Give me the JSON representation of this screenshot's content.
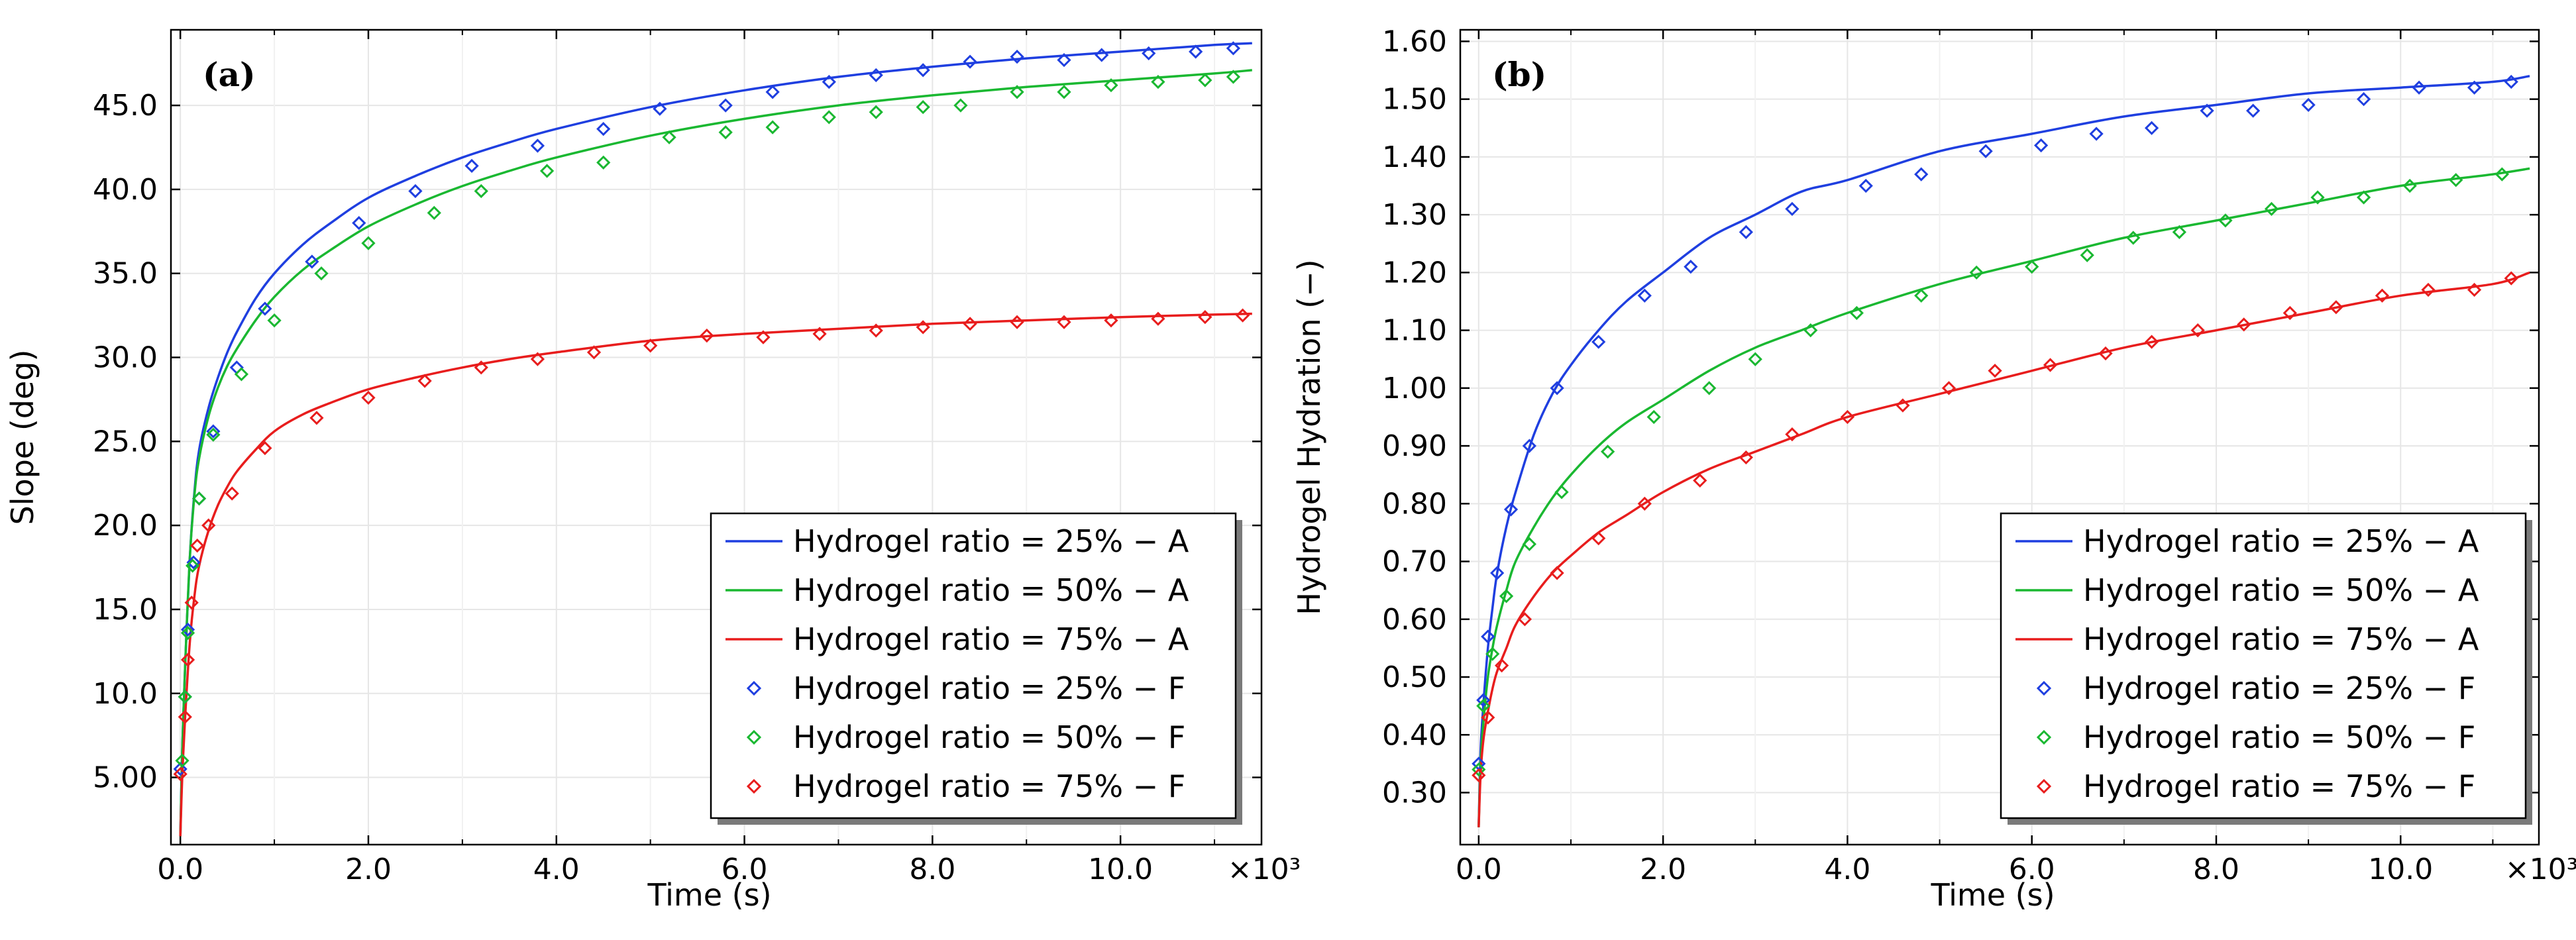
{
  "chart_data": [
    {
      "type": "line",
      "panel_label": "(a)",
      "xlabel": "Time (s)",
      "ylabel": "Slope (deg)",
      "x_multiplier": "×10³",
      "xlim": [
        -0.1,
        11.5
      ],
      "ylim": [
        1.0,
        49.5
      ],
      "x_ticks": [
        0.0,
        2.0,
        4.0,
        6.0,
        8.0,
        10.0
      ],
      "x_tick_labels": [
        "0.0",
        "2.0",
        "4.0",
        "6.0",
        "8.0",
        "10.0"
      ],
      "y_ticks": [
        5,
        10,
        15,
        20,
        25,
        30,
        35,
        40,
        45
      ],
      "y_tick_labels": [
        "5.00",
        "10.0",
        "15.0",
        "20.0",
        "25.0",
        "30.0",
        "35.0",
        "40.0",
        "45.0"
      ],
      "grid": true,
      "legend_position": "bottom-right",
      "series": [
        {
          "name": "Hydrogel ratio = 25% − A",
          "kind": "line",
          "color": "#1f3fe0",
          "x": [
            0,
            0.02,
            0.05,
            0.1,
            0.15,
            0.2,
            0.3,
            0.4,
            0.5,
            0.6,
            0.8,
            1.0,
            1.3,
            1.6,
            2.0,
            2.5,
            3.0,
            3.5,
            4.0,
            5.0,
            6.0,
            7.0,
            8.0,
            9.0,
            10.0,
            11.0,
            11.4
          ],
          "y": [
            1.5,
            6.5,
            11.5,
            18.0,
            22.0,
            24.5,
            27.0,
            28.8,
            30.3,
            31.5,
            33.5,
            35.0,
            36.7,
            38.0,
            39.5,
            40.8,
            41.9,
            42.8,
            43.6,
            44.9,
            45.9,
            46.7,
            47.3,
            47.8,
            48.2,
            48.6,
            48.7
          ]
        },
        {
          "name": "Hydrogel ratio = 50% − A",
          "kind": "line",
          "color": "#1ab831",
          "x": [
            0,
            0.02,
            0.05,
            0.1,
            0.15,
            0.2,
            0.3,
            0.4,
            0.5,
            0.6,
            0.8,
            1.0,
            1.3,
            1.6,
            2.0,
            2.5,
            3.0,
            3.5,
            4.0,
            5.0,
            6.0,
            7.0,
            8.0,
            9.0,
            10.0,
            11.0,
            11.4
          ],
          "y": [
            1.5,
            6.5,
            11.5,
            18.0,
            21.8,
            24.0,
            26.5,
            28.2,
            29.5,
            30.5,
            32.2,
            33.6,
            35.2,
            36.4,
            37.8,
            39.1,
            40.2,
            41.1,
            41.9,
            43.2,
            44.2,
            45.0,
            45.6,
            46.1,
            46.5,
            46.9,
            47.1
          ]
        },
        {
          "name": "Hydrogel ratio = 75% − A",
          "kind": "line",
          "color": "#e81d1d",
          "x": [
            0,
            0.02,
            0.05,
            0.1,
            0.15,
            0.2,
            0.3,
            0.4,
            0.5,
            0.6,
            0.8,
            1.0,
            1.3,
            1.6,
            2.0,
            2.5,
            3.0,
            3.5,
            4.0,
            5.0,
            6.0,
            7.0,
            8.0,
            9.0,
            10.0,
            11.0,
            11.4
          ],
          "y": [
            1.5,
            5.0,
            8.5,
            13.0,
            15.8,
            17.6,
            19.7,
            21.2,
            22.3,
            23.2,
            24.5,
            25.6,
            26.6,
            27.3,
            28.1,
            28.8,
            29.4,
            29.9,
            30.3,
            31.0,
            31.4,
            31.7,
            32.0,
            32.2,
            32.4,
            32.55,
            32.6
          ]
        },
        {
          "name": "Hydrogel ratio = 25% − F",
          "kind": "markers",
          "color": "#1f3fe0",
          "x": [
            0.0,
            0.05,
            0.08,
            0.14,
            0.2,
            0.35,
            0.6,
            0.9,
            1.4,
            1.9,
            2.5,
            3.1,
            3.8,
            4.5,
            5.1,
            5.8,
            6.3,
            6.9,
            7.4,
            7.9,
            8.4,
            8.9,
            9.4,
            9.8,
            10.3,
            10.8,
            11.2
          ],
          "y": [
            5.5,
            9.8,
            13.8,
            17.8,
            21.6,
            25.6,
            29.4,
            32.9,
            35.7,
            38.0,
            39.9,
            41.4,
            42.6,
            43.6,
            44.8,
            45.0,
            45.8,
            46.4,
            46.8,
            47.1,
            47.6,
            47.9,
            47.7,
            48.0,
            48.1,
            48.2,
            48.4
          ]
        },
        {
          "name": "Hydrogel ratio = 50% − F",
          "kind": "markers",
          "color": "#1ab831",
          "x": [
            0.02,
            0.05,
            0.08,
            0.13,
            0.2,
            0.35,
            0.65,
            1.0,
            1.5,
            2.0,
            2.7,
            3.2,
            3.9,
            4.5,
            5.2,
            5.8,
            6.3,
            6.9,
            7.4,
            7.9,
            8.3,
            8.9,
            9.4,
            9.9,
            10.4,
            10.9,
            11.2
          ],
          "y": [
            6.0,
            9.8,
            13.6,
            17.6,
            21.6,
            25.4,
            29.0,
            32.2,
            35.0,
            36.8,
            38.6,
            39.9,
            41.1,
            41.6,
            43.1,
            43.4,
            43.7,
            44.3,
            44.6,
            44.9,
            45.0,
            45.8,
            45.8,
            46.2,
            46.4,
            46.5,
            46.7
          ]
        },
        {
          "name": "Hydrogel ratio = 75% − F",
          "kind": "markers",
          "color": "#e81d1d",
          "x": [
            0.0,
            0.05,
            0.08,
            0.12,
            0.18,
            0.3,
            0.55,
            0.9,
            1.45,
            2.0,
            2.6,
            3.2,
            3.8,
            4.4,
            5.0,
            5.6,
            6.2,
            6.8,
            7.4,
            7.9,
            8.4,
            8.9,
            9.4,
            9.9,
            10.4,
            10.9,
            11.3
          ],
          "y": [
            5.2,
            8.6,
            12.0,
            15.4,
            18.8,
            20.0,
            21.9,
            24.6,
            26.4,
            27.6,
            28.6,
            29.4,
            29.9,
            30.3,
            30.7,
            31.3,
            31.2,
            31.4,
            31.6,
            31.8,
            32.0,
            32.1,
            32.1,
            32.2,
            32.3,
            32.4,
            32.5
          ]
        }
      ]
    },
    {
      "type": "line",
      "panel_label": "(b)",
      "xlabel": "Time (s)",
      "ylabel": "Hydrogel Hydration (−)",
      "x_multiplier": "×10³",
      "xlim": [
        -0.2,
        11.5
      ],
      "ylim": [
        0.21,
        1.62
      ],
      "x_ticks": [
        0.0,
        2.0,
        4.0,
        6.0,
        8.0,
        10.0
      ],
      "x_tick_labels": [
        "0.0",
        "2.0",
        "4.0",
        "6.0",
        "8.0",
        "10.0"
      ],
      "y_ticks": [
        0.3,
        0.4,
        0.5,
        0.6,
        0.7,
        0.8,
        0.9,
        1.0,
        1.1,
        1.2,
        1.3,
        1.4,
        1.5,
        1.6
      ],
      "y_tick_labels": [
        "0.30",
        "0.40",
        "0.50",
        "0.60",
        "0.70",
        "0.80",
        "0.90",
        "1.00",
        "1.10",
        "1.20",
        "1.30",
        "1.40",
        "1.50",
        "1.60"
      ],
      "grid": true,
      "legend_position": "bottom-right",
      "series": [
        {
          "name": "Hydrogel ratio = 25% − A",
          "kind": "line",
          "color": "#1f3fe0",
          "x": [
            0,
            0.02,
            0.05,
            0.1,
            0.15,
            0.2,
            0.3,
            0.4,
            0.6,
            0.8,
            1.0,
            1.3,
            1.6,
            2.0,
            2.5,
            3.0,
            3.5,
            4.0,
            5.0,
            6.0,
            7.0,
            8.0,
            9.0,
            10.0,
            11.0,
            11.4
          ],
          "y": [
            0.24,
            0.37,
            0.45,
            0.55,
            0.62,
            0.68,
            0.76,
            0.82,
            0.92,
            0.99,
            1.04,
            1.1,
            1.15,
            1.2,
            1.26,
            1.3,
            1.34,
            1.36,
            1.41,
            1.44,
            1.47,
            1.49,
            1.51,
            1.52,
            1.53,
            1.54
          ]
        },
        {
          "name": "Hydrogel ratio = 50% − A",
          "kind": "line",
          "color": "#1ab831",
          "x": [
            0,
            0.02,
            0.05,
            0.1,
            0.15,
            0.2,
            0.3,
            0.4,
            0.6,
            0.8,
            1.0,
            1.3,
            1.6,
            2.0,
            2.5,
            3.0,
            3.5,
            4.0,
            5.0,
            6.0,
            7.0,
            8.0,
            9.0,
            10.0,
            11.0,
            11.4
          ],
          "y": [
            0.24,
            0.35,
            0.42,
            0.5,
            0.55,
            0.59,
            0.65,
            0.7,
            0.76,
            0.81,
            0.85,
            0.9,
            0.94,
            0.98,
            1.03,
            1.07,
            1.1,
            1.13,
            1.18,
            1.22,
            1.26,
            1.29,
            1.32,
            1.35,
            1.37,
            1.38
          ]
        },
        {
          "name": "Hydrogel ratio = 75% − A",
          "kind": "line",
          "color": "#e81d1d",
          "x": [
            0,
            0.02,
            0.05,
            0.1,
            0.15,
            0.2,
            0.3,
            0.4,
            0.6,
            0.8,
            1.0,
            1.3,
            1.6,
            2.0,
            2.5,
            3.0,
            3.5,
            4.0,
            5.0,
            6.0,
            7.0,
            8.0,
            9.0,
            10.0,
            11.0,
            11.4
          ],
          "y": [
            0.24,
            0.33,
            0.39,
            0.44,
            0.48,
            0.51,
            0.55,
            0.59,
            0.64,
            0.68,
            0.71,
            0.75,
            0.78,
            0.82,
            0.86,
            0.89,
            0.92,
            0.95,
            0.99,
            1.03,
            1.07,
            1.1,
            1.13,
            1.16,
            1.18,
            1.2
          ]
        },
        {
          "name": "Hydrogel ratio = 25% − F",
          "kind": "markers",
          "color": "#1f3fe0",
          "x": [
            0.0,
            0.05,
            0.1,
            0.2,
            0.35,
            0.55,
            0.85,
            1.3,
            1.8,
            2.3,
            2.9,
            3.4,
            4.2,
            4.8,
            5.5,
            6.1,
            6.7,
            7.3,
            7.9,
            8.4,
            9.0,
            9.6,
            10.2,
            10.8,
            11.2
          ],
          "y": [
            0.35,
            0.46,
            0.57,
            0.68,
            0.79,
            0.9,
            1.0,
            1.08,
            1.16,
            1.21,
            1.27,
            1.31,
            1.35,
            1.37,
            1.41,
            1.42,
            1.44,
            1.45,
            1.48,
            1.48,
            1.49,
            1.5,
            1.52,
            1.52,
            1.53
          ]
        },
        {
          "name": "Hydrogel ratio = 50% − F",
          "kind": "markers",
          "color": "#1ab831",
          "x": [
            0.0,
            0.05,
            0.15,
            0.3,
            0.55,
            0.9,
            1.4,
            1.9,
            2.5,
            3.0,
            3.6,
            4.1,
            4.8,
            5.4,
            6.0,
            6.6,
            7.1,
            7.6,
            8.1,
            8.6,
            9.1,
            9.6,
            10.1,
            10.6,
            11.1
          ],
          "y": [
            0.34,
            0.45,
            0.54,
            0.64,
            0.73,
            0.82,
            0.89,
            0.95,
            1.0,
            1.05,
            1.1,
            1.13,
            1.16,
            1.2,
            1.21,
            1.23,
            1.26,
            1.27,
            1.29,
            1.31,
            1.33,
            1.33,
            1.35,
            1.36,
            1.37
          ]
        },
        {
          "name": "Hydrogel ratio = 75% − F",
          "kind": "markers",
          "color": "#e81d1d",
          "x": [
            0.0,
            0.1,
            0.25,
            0.5,
            0.85,
            1.3,
            1.8,
            2.4,
            2.9,
            3.4,
            4.0,
            4.6,
            5.1,
            5.6,
            6.2,
            6.8,
            7.3,
            7.8,
            8.3,
            8.8,
            9.3,
            9.8,
            10.3,
            10.8,
            11.2
          ],
          "y": [
            0.33,
            0.43,
            0.52,
            0.6,
            0.68,
            0.74,
            0.8,
            0.84,
            0.88,
            0.92,
            0.95,
            0.97,
            1.0,
            1.03,
            1.04,
            1.06,
            1.08,
            1.1,
            1.11,
            1.13,
            1.14,
            1.16,
            1.17,
            1.17,
            1.19
          ]
        }
      ]
    }
  ]
}
